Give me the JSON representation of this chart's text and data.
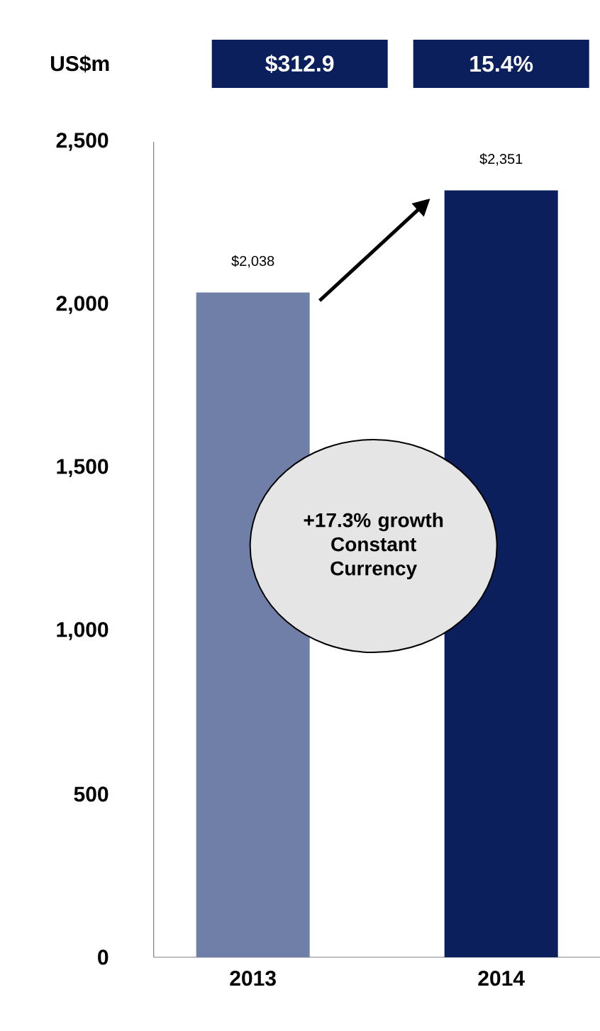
{
  "chart_data": {
    "type": "bar",
    "categories": [
      "2013",
      "2014"
    ],
    "values": [
      2038,
      2351
    ],
    "colors": [
      "#6f7fa8",
      "#0a1f5c"
    ],
    "value_labels": [
      "$2,038",
      "$2,351"
    ],
    "ylim": [
      0,
      2500
    ],
    "yticks": [
      0,
      {
        "value": 500,
        "label": "500"
      },
      {
        "value": 1000,
        "label": "1,000"
      },
      {
        "value": 1500,
        "label": "1,500"
      },
      {
        "value": 2000,
        "label": "2,000"
      },
      {
        "value": 2500,
        "label": "2,500"
      }
    ],
    "grid": false,
    "annotations": [
      "US$m",
      "$312.9",
      "15.4%",
      "+17.3% growth Constant Currency"
    ]
  }
}
